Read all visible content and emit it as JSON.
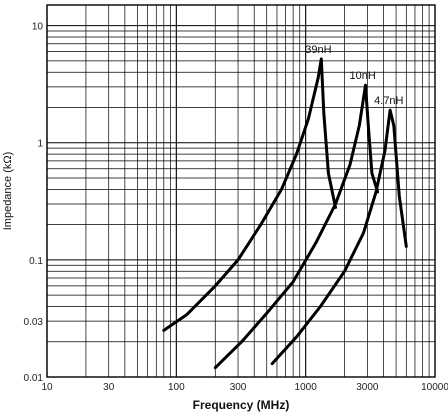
{
  "chart_data": {
    "type": "line",
    "title": "",
    "xlabel": "Frequency (MHz)",
    "ylabel": "Impedance (kΩ)",
    "x_scale": "log",
    "y_scale": "log",
    "xlim": [
      10,
      10000
    ],
    "ylim": [
      0.01,
      15
    ],
    "grid": true,
    "x_ticks": [
      {
        "value": 10,
        "label": "10"
      },
      {
        "value": 30,
        "label": "30"
      },
      {
        "value": 100,
        "label": "100"
      },
      {
        "value": 300,
        "label": "300"
      },
      {
        "value": 1000,
        "label": "1000"
      },
      {
        "value": 3000,
        "label": "3000"
      },
      {
        "value": 10000,
        "label": "10000"
      }
    ],
    "y_ticks": [
      {
        "value": 0.01,
        "label": "0.01"
      },
      {
        "value": 0.03,
        "label": "0.03"
      },
      {
        "value": 0.1,
        "label": "0.1"
      },
      {
        "value": 1,
        "label": "1"
      },
      {
        "value": 10,
        "label": "10"
      }
    ],
    "series": [
      {
        "name": "39nH",
        "x": [
          80,
          120,
          200,
          300,
          450,
          650,
          850,
          1050,
          1250,
          1320,
          1380,
          1500,
          1700
        ],
        "y": [
          0.025,
          0.034,
          0.06,
          0.1,
          0.2,
          0.4,
          0.8,
          1.6,
          3.6,
          5.2,
          1.8,
          0.55,
          0.28
        ]
      },
      {
        "name": "10nH",
        "x": [
          200,
          320,
          500,
          800,
          1200,
          1700,
          2200,
          2600,
          2900,
          3050,
          3250,
          3600
        ],
        "y": [
          0.012,
          0.02,
          0.035,
          0.065,
          0.14,
          0.3,
          0.65,
          1.4,
          3.1,
          1.4,
          0.55,
          0.38
        ]
      },
      {
        "name": "4.7nH",
        "x": [
          550,
          850,
          1300,
          2000,
          2800,
          3500,
          4100,
          4500,
          4800,
          5300,
          6000
        ],
        "y": [
          0.013,
          0.022,
          0.04,
          0.08,
          0.17,
          0.38,
          0.85,
          1.9,
          1.4,
          0.35,
          0.13
        ]
      }
    ]
  }
}
